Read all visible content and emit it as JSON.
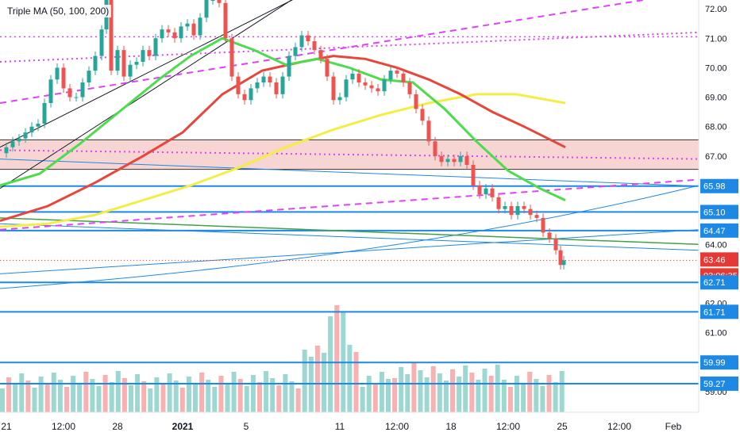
{
  "indicator": {
    "title": "Triple MA (50, 100, 200)"
  },
  "colors": {
    "up": "#26a69a",
    "down": "#ef5350",
    "ma50": "#4cdc4c",
    "ma100": "#e8463c",
    "ma200": "#f2ee46",
    "hline": "#1e88e5",
    "dashed": "#e040fb",
    "zone": "#f4c7c3",
    "green_trend": "#43a047",
    "black_trend": "#131722",
    "current": "#e53935"
  },
  "chart_data": {
    "type": "candlestick",
    "title": "Triple MA (50, 100, 200)",
    "ylim": [
      58.3,
      72.3
    ],
    "y_ticks": [
      "72.00",
      "71.00",
      "70.00",
      "69.00",
      "68.00",
      "67.00",
      "66.00",
      "65.00",
      "64.00",
      "63.00",
      "62.00",
      "61.00",
      "59.00"
    ],
    "x_ticks": [
      "21",
      "12:00",
      "28",
      "2021",
      "5",
      "11",
      "12:00",
      "18",
      "12:00",
      "25",
      "12:00",
      "Feb"
    ],
    "price_labels": [
      {
        "value": 65.98,
        "text": "65.98",
        "kind": "hline"
      },
      {
        "value": 65.1,
        "text": "65.10",
        "kind": "hline"
      },
      {
        "value": 64.47,
        "text": "64.47",
        "kind": "hline"
      },
      {
        "value": 63.46,
        "text": "63.46",
        "kind": "current"
      },
      {
        "value": 63.46,
        "text": "03:06:35",
        "kind": "countdown"
      },
      {
        "value": 62.71,
        "text": "62.71",
        "kind": "hline"
      },
      {
        "value": 61.71,
        "text": "61.71",
        "kind": "hline"
      },
      {
        "value": 59.99,
        "text": "59.99",
        "kind": "hline"
      },
      {
        "value": 59.27,
        "text": "59.27",
        "kind": "hline"
      }
    ],
    "horizontal_levels": [
      65.98,
      65.1,
      64.47,
      62.71,
      61.71,
      59.99,
      59.27
    ],
    "black_levels": [
      67.55,
      66.55
    ],
    "zone": [
      66.55,
      67.55
    ],
    "current_price": 63.46,
    "close_path": [
      [
        0,
        67.1
      ],
      [
        8,
        67.3
      ],
      [
        16,
        67.5
      ],
      [
        24,
        67.6
      ],
      [
        32,
        67.8
      ],
      [
        40,
        68.0
      ],
      [
        48,
        68.1
      ],
      [
        56,
        68.8
      ],
      [
        64,
        69.6
      ],
      [
        72,
        70.0
      ],
      [
        80,
        69.3
      ],
      [
        88,
        69.0
      ],
      [
        96,
        69.0
      ],
      [
        104,
        69.5
      ],
      [
        112,
        69.9
      ],
      [
        120,
        70.4
      ],
      [
        128,
        71.3
      ],
      [
        134,
        72.3
      ],
      [
        140,
        69.9
      ],
      [
        148,
        70.6
      ],
      [
        156,
        69.7
      ],
      [
        164,
        70.1
      ],
      [
        172,
        70.2
      ],
      [
        180,
        70.6
      ],
      [
        188,
        70.4
      ],
      [
        196,
        71.0
      ],
      [
        204,
        71.3
      ],
      [
        212,
        71.2
      ],
      [
        220,
        71.0
      ],
      [
        228,
        71.4
      ],
      [
        236,
        71.5
      ],
      [
        244,
        71.1
      ],
      [
        252,
        71.7
      ],
      [
        260,
        72.3
      ],
      [
        268,
        72.3
      ],
      [
        276,
        72.2
      ],
      [
        284,
        71.0
      ],
      [
        292,
        69.7
      ],
      [
        300,
        69.1
      ],
      [
        308,
        68.9
      ],
      [
        316,
        69.3
      ],
      [
        324,
        69.5
      ],
      [
        332,
        69.7
      ],
      [
        340,
        69.5
      ],
      [
        348,
        69.1
      ],
      [
        356,
        69.7
      ],
      [
        364,
        70.4
      ],
      [
        372,
        70.7
      ],
      [
        380,
        71.1
      ],
      [
        388,
        70.9
      ],
      [
        396,
        70.6
      ],
      [
        404,
        70.3
      ],
      [
        412,
        69.7
      ],
      [
        420,
        68.9
      ],
      [
        428,
        69.0
      ],
      [
        436,
        69.6
      ],
      [
        444,
        69.8
      ],
      [
        452,
        69.5
      ],
      [
        460,
        69.4
      ],
      [
        468,
        69.3
      ],
      [
        476,
        69.2
      ],
      [
        484,
        69.6
      ],
      [
        492,
        69.9
      ],
      [
        500,
        69.8
      ],
      [
        508,
        69.5
      ],
      [
        516,
        69.1
      ],
      [
        524,
        68.6
      ],
      [
        532,
        68.2
      ],
      [
        540,
        67.5
      ],
      [
        548,
        67.0
      ],
      [
        556,
        66.8
      ],
      [
        564,
        66.9
      ],
      [
        572,
        66.8
      ],
      [
        580,
        67.0
      ],
      [
        588,
        66.7
      ],
      [
        596,
        66.0
      ],
      [
        604,
        65.7
      ],
      [
        612,
        65.9
      ],
      [
        620,
        65.6
      ],
      [
        628,
        65.2
      ],
      [
        636,
        65.3
      ],
      [
        644,
        65.0
      ],
      [
        652,
        65.3
      ],
      [
        660,
        65.2
      ],
      [
        668,
        65.0
      ],
      [
        676,
        64.9
      ],
      [
        684,
        64.4
      ],
      [
        692,
        64.2
      ],
      [
        700,
        63.8
      ],
      [
        706,
        63.3
      ],
      [
        710,
        63.46
      ]
    ],
    "ma50": [
      [
        0,
        66.0
      ],
      [
        50,
        66.4
      ],
      [
        100,
        67.4
      ],
      [
        150,
        68.5
      ],
      [
        200,
        69.6
      ],
      [
        240,
        70.4
      ],
      [
        280,
        71.0
      ],
      [
        320,
        70.6
      ],
      [
        360,
        70.1
      ],
      [
        400,
        70.3
      ],
      [
        440,
        70.0
      ],
      [
        480,
        69.6
      ],
      [
        520,
        69.5
      ],
      [
        560,
        68.6
      ],
      [
        600,
        67.5
      ],
      [
        640,
        66.5
      ],
      [
        680,
        65.9
      ],
      [
        712,
        65.5
      ]
    ],
    "ma100": [
      [
        0,
        64.8
      ],
      [
        60,
        65.3
      ],
      [
        120,
        66.1
      ],
      [
        180,
        67.0
      ],
      [
        230,
        67.8
      ],
      [
        280,
        69.1
      ],
      [
        330,
        69.9
      ],
      [
        380,
        70.2
      ],
      [
        420,
        70.4
      ],
      [
        460,
        70.3
      ],
      [
        500,
        70.0
      ],
      [
        540,
        69.6
      ],
      [
        580,
        69.1
      ],
      [
        620,
        68.5
      ],
      [
        660,
        68.0
      ],
      [
        712,
        67.3
      ]
    ],
    "ma200": [
      [
        0,
        64.6
      ],
      [
        60,
        64.7
      ],
      [
        120,
        65.0
      ],
      [
        180,
        65.5
      ],
      [
        240,
        66.0
      ],
      [
        300,
        66.6
      ],
      [
        360,
        67.3
      ],
      [
        420,
        67.9
      ],
      [
        480,
        68.4
      ],
      [
        540,
        68.8
      ],
      [
        600,
        69.1
      ],
      [
        650,
        69.1
      ],
      [
        712,
        68.8
      ]
    ],
    "volume_count": 88
  }
}
